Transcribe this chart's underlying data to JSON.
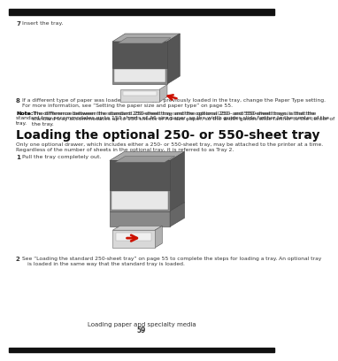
{
  "bg_color": "#ffffff",
  "top_bar_color": "#111111",
  "bottom_bar_color": "#111111",
  "step7_label": "7",
  "step7_text": "Insert the tray.",
  "step8_label": "8",
  "step8_line1": "If a different type of paper was loaded than the type previously loaded in the tray, change the Paper Type setting.",
  "step8_line2": "For more information, see “Setting the paper size and paper type” on page 55.",
  "note_bold": "Note:",
  "note_text": " The difference between the standard 250-sheet tray and the optional 250- and 550-sheet trays is that the standard tray accommodates up to 150 sheets of A6-size paper, so the width guides slide farther to the center of the tray.",
  "section_title": "Loading the optional 250- or 550-sheet tray",
  "section_intro1": "Only one optional drawer, which includes either a 250- or 550-sheet tray, may be attached to the printer at a time.",
  "section_intro2": "Regardless of the number of sheets in the optional tray, it is referred to as Tray 2.",
  "step1_label": "1",
  "step1_text": "Pull the tray completely out.",
  "step2_label": "2",
  "step2_line1": "See “Loading the standard 250-sheet tray” on page 55 to complete the steps for loading a tray. An optional tray",
  "step2_line2": "is loaded in the same way that the standard tray is loaded.",
  "footer_text": "Loading paper and specialty media",
  "page_number": "59",
  "text_color": "#333333",
  "small_text_color": "#444444",
  "note_color": "#222222",
  "arrow_color": "#cc1100",
  "printer_body_dark": "#555555",
  "printer_body_mid": "#888888",
  "printer_body_light": "#cccccc",
  "printer_top": "#aaaaaa",
  "printer_white": "#e8e8e8",
  "tray_color": "#d8d8d8",
  "paper_color": "#f0f0f0"
}
